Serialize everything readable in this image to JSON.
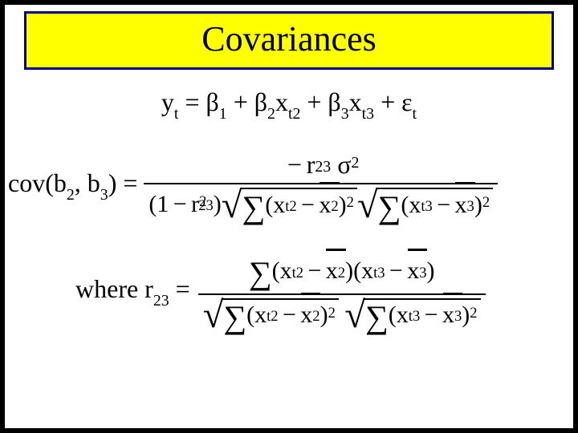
{
  "title": "Covariances",
  "model": {
    "lhs_y": "y",
    "lhs_y_sub": "t",
    "eq": " = ",
    "b": "β",
    "b1_sub": "1",
    "plus": " + ",
    "b2_sub": "2",
    "x": "x",
    "x2_sub": "t2",
    "b3_sub": "3",
    "x3_sub": "t3",
    "eps": "ε",
    "eps_sub": "t"
  },
  "cov": {
    "label_pre": "cov(b",
    "label_s1": "2",
    "label_mid": ", b",
    "label_s2": "3",
    "label_post": ") =",
    "num": {
      "neg": "−",
      "r": "r",
      "r_sub": "23",
      "sigma": "σ",
      "sigma_sup": "2"
    },
    "den": {
      "open": "(",
      "one": "1",
      "minus": "−",
      "r": "r",
      "r_sub": "23",
      "r_sup": "2",
      "close": ")",
      "sum": "∑",
      "lp": "(",
      "rp": ")",
      "xa": "x",
      "xa_sub": "t2",
      "xm1": "−",
      "xbar1": "x",
      "xbar1_sub": "2",
      "sq": "2",
      "xb": "x",
      "xb_sub": "t3",
      "xm2": "−",
      "xbar2": "x",
      "xbar2_sub": "3"
    }
  },
  "where": {
    "label_pre": "where  r",
    "label_sub": "23",
    "label_post": " =",
    "num": {
      "sum": "∑",
      "lp": "(",
      "rp": ")",
      "x1": "x",
      "x1_sub": "t2",
      "m1": "−",
      "xb1": "x",
      "xb1_sub": "2",
      "x2": "x",
      "x2_sub": "t3",
      "m2": "−",
      "xb2": "x",
      "xb2_sub": "3"
    },
    "den": {
      "sum": "∑",
      "lp": "(",
      "rp": ")",
      "sq": "2",
      "x1": "x",
      "x1_sub": "t2",
      "m1": "−",
      "xb1": "x",
      "xb1_sub": "2",
      "x2": "x",
      "x2_sub": "t3",
      "m2": "−",
      "xb2": "x",
      "xb2_sub": "3"
    }
  },
  "colors": {
    "title_bg": "#ffff00",
    "title_border": "#000080",
    "page_border": "#000000",
    "text": "#000000",
    "bg": "#ffffff"
  },
  "fontsizes": {
    "title": 44,
    "body": 32,
    "expr": 30
  }
}
